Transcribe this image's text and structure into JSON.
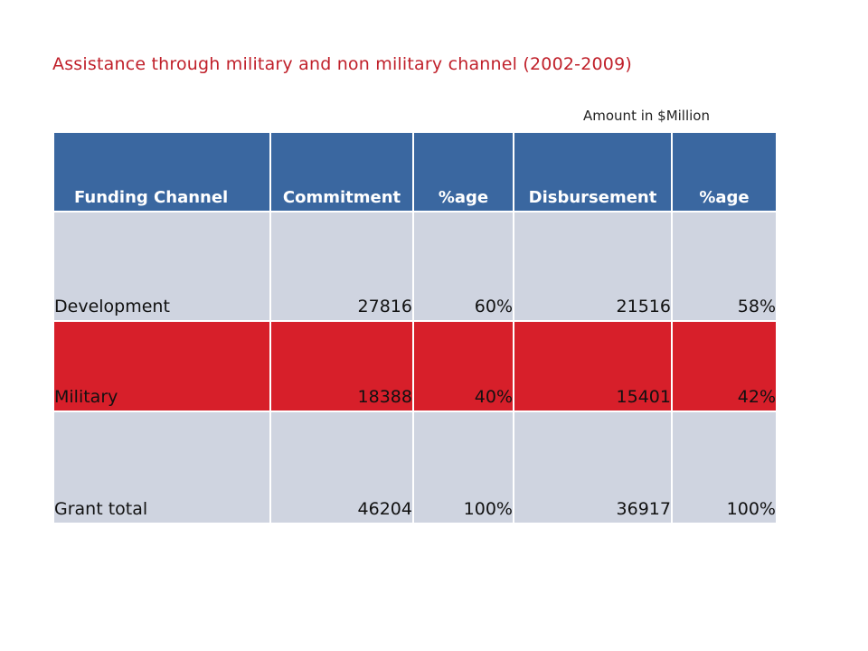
{
  "title": "Assistance through military and non military channel (2002-2009)",
  "unit_note": "Amount in $Million",
  "table": {
    "headers": [
      "Funding Channel",
      "Commitment",
      "%age",
      "Disbursement",
      "%age"
    ],
    "rows": [
      {
        "label": "Development",
        "commitment": "27816",
        "commit_pct": "60%",
        "disbursement": "21516",
        "disb_pct": "58%"
      },
      {
        "label": "Military",
        "commitment": "18388",
        "commit_pct": "40%",
        "disbursement": "15401",
        "disb_pct": "42%"
      },
      {
        "label": "Grant total",
        "commitment": "46204",
        "commit_pct": "100%",
        "disbursement": "36917",
        "disb_pct": "100%"
      }
    ]
  },
  "colors": {
    "title": "#c0202a",
    "header_bg": "#3a67a0",
    "row_light": "#cfd4e0",
    "row_red": "#d71f2a"
  }
}
